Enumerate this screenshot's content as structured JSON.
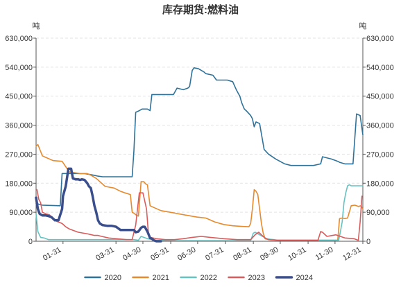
{
  "chart_data": {
    "type": "line",
    "title": "库存期货:燃料油",
    "ylabel_left": "吨",
    "ylabel_right": "吨",
    "ylim": [
      0,
      630000
    ],
    "y_ticks": [
      0,
      90000,
      180000,
      270000,
      360000,
      450000,
      540000,
      630000
    ],
    "y_tick_labels": [
      "0",
      "90,000",
      "180,000",
      "270,000",
      "360,000",
      "450,000",
      "540,000",
      "630,000"
    ],
    "x_tick_labels": [
      "01-31",
      "03-31",
      "04-30",
      "05-31",
      "06-30",
      "07-31",
      "08-31",
      "09-30",
      "10-31",
      "11-30",
      "12-31"
    ],
    "x_tick_days": [
      31,
      90,
      120,
      151,
      181,
      212,
      243,
      273,
      304,
      334,
      365
    ],
    "x_range_days": [
      1,
      365
    ],
    "grid": true,
    "legend_position": "bottom",
    "series": [
      {
        "name": "2020",
        "color": "#2f7299",
        "x": [
          1,
          4,
          8,
          28,
          30,
          45,
          55,
          65,
          70,
          75,
          85,
          95,
          108,
          110,
          112,
          116,
          119,
          125,
          128,
          130,
          150,
          154,
          158,
          165,
          170,
          172,
          175,
          177,
          182,
          188,
          190,
          198,
          202,
          208,
          214,
          220,
          224,
          226,
          228,
          230,
          233,
          235,
          240,
          242,
          244,
          246,
          250,
          255,
          260,
          268,
          278,
          285,
          292,
          300,
          310,
          318,
          320,
          330,
          335,
          337,
          339,
          345,
          350,
          354,
          358,
          362,
          365
        ],
        "y": [
          118000,
          115000,
          112000,
          110000,
          210000,
          210000,
          210000,
          205000,
          202000,
          200000,
          200000,
          200000,
          200000,
          280000,
          400000,
          405000,
          410000,
          410000,
          405000,
          455000,
          455000,
          455000,
          475000,
          470000,
          475000,
          480000,
          530000,
          538000,
          535000,
          525000,
          520000,
          515000,
          500000,
          500000,
          500000,
          495000,
          470000,
          460000,
          450000,
          430000,
          410000,
          405000,
          390000,
          380000,
          355000,
          370000,
          365000,
          285000,
          270000,
          255000,
          240000,
          235000,
          235000,
          235000,
          235000,
          240000,
          262000,
          255000,
          250000,
          248000,
          245000,
          240000,
          240000,
          240000,
          395000,
          390000,
          330000
        ]
      },
      {
        "name": "2021",
        "color": "#e68a2e",
        "x": [
          1,
          3,
          8,
          12,
          20,
          30,
          38,
          50,
          58,
          62,
          68,
          78,
          88,
          95,
          100,
          106,
          108,
          111,
          113,
          115,
          118,
          121,
          123,
          125,
          128,
          132,
          140,
          150,
          160,
          170,
          180,
          190,
          200,
          210,
          220,
          230,
          238,
          240,
          242,
          244,
          246,
          248,
          250,
          252,
          254,
          256,
          260,
          270,
          280,
          290,
          300,
          310,
          320,
          330,
          337,
          339,
          342,
          345,
          348,
          352,
          356,
          360,
          363,
          365
        ],
        "y": [
          295000,
          300000,
          265000,
          260000,
          250000,
          248000,
          215000,
          210000,
          210000,
          205000,
          195000,
          170000,
          165000,
          155000,
          150000,
          145000,
          90000,
          85000,
          80000,
          78000,
          185000,
          185000,
          178000,
          175000,
          110000,
          105000,
          95000,
          90000,
          85000,
          80000,
          75000,
          72000,
          60000,
          52000,
          48000,
          46000,
          45000,
          55000,
          100000,
          160000,
          155000,
          145000,
          100000,
          55000,
          25000,
          8000,
          5000,
          3000,
          3000,
          3000,
          3000,
          3000,
          3000,
          3000,
          3000,
          70000,
          72000,
          70000,
          72000,
          110000,
          112000,
          108000,
          110000,
          100000
        ]
      },
      {
        "name": "2022",
        "color": "#67c2c2",
        "x": [
          1,
          3,
          6,
          10,
          15,
          20,
          30,
          40,
          60,
          80,
          100,
          110,
          115,
          118,
          125,
          135,
          160,
          200,
          240,
          243,
          245,
          250,
          258,
          262,
          266,
          270,
          290,
          320,
          338,
          340,
          342,
          344,
          346,
          348,
          350,
          352,
          354,
          365
        ],
        "y": [
          85000,
          30000,
          12000,
          10000,
          5000,
          5000,
          5000,
          5000,
          5000,
          5000,
          5000,
          5000,
          3000,
          15000,
          8000,
          3000,
          2000,
          2000,
          2000,
          25000,
          28000,
          20000,
          8000,
          6000,
          5000,
          3000,
          3000,
          3000,
          3000,
          30000,
          60000,
          120000,
          150000,
          172000,
          175000,
          172000,
          172000,
          172000
        ]
      },
      {
        "name": "2023",
        "color": "#d95c5c",
        "x": [
          1,
          2,
          4,
          6,
          8,
          12,
          16,
          20,
          24,
          30,
          34,
          38,
          44,
          48,
          54,
          60,
          66,
          70,
          74,
          82,
          90,
          102,
          108,
          112,
          116,
          120,
          124,
          126,
          128,
          135,
          145,
          155,
          165,
          175,
          185,
          195,
          210,
          225,
          240,
          245,
          249,
          252,
          256,
          260,
          270,
          290,
          300,
          315,
          318,
          320,
          325,
          335,
          345,
          355,
          360,
          362,
          364
        ],
        "y": [
          160000,
          160000,
          130000,
          120000,
          90000,
          85000,
          82000,
          70000,
          62000,
          55000,
          45000,
          38000,
          32000,
          28000,
          25000,
          22000,
          18000,
          18000,
          15000,
          10000,
          8000,
          5000,
          5000,
          50000,
          150000,
          150000,
          100000,
          30000,
          12000,
          8000,
          5000,
          5000,
          8000,
          12000,
          15000,
          12000,
          8000,
          5000,
          5000,
          20000,
          28000,
          20000,
          10000,
          5000,
          3000,
          3000,
          3000,
          3000,
          30000,
          28000,
          15000,
          20000,
          10000,
          8000,
          3000,
          60000,
          140000
        ]
      },
      {
        "name": "2024",
        "color": "#3a4e8c",
        "x": [
          1,
          3,
          5,
          8,
          12,
          15,
          18,
          22,
          26,
          30,
          31,
          34,
          37,
          40,
          42,
          45,
          48,
          50,
          52,
          55,
          58,
          60,
          62,
          64,
          66,
          68,
          70,
          72,
          75,
          80,
          85,
          90,
          95,
          100,
          105,
          110,
          112,
          115,
          118,
          120,
          122,
          125,
          128,
          130,
          132,
          135,
          140
        ],
        "y": [
          135000,
          100000,
          85000,
          80000,
          80000,
          78000,
          75000,
          65000,
          65000,
          100000,
          140000,
          170000,
          225000,
          225000,
          195000,
          192000,
          192000,
          190000,
          192000,
          190000,
          180000,
          170000,
          165000,
          140000,
          110000,
          90000,
          65000,
          55000,
          50000,
          48000,
          48000,
          45000,
          35000,
          35000,
          35000,
          35000,
          28000,
          30000,
          42000,
          45000,
          45000,
          30000,
          10000,
          8000,
          3000,
          0,
          0
        ]
      }
    ]
  }
}
